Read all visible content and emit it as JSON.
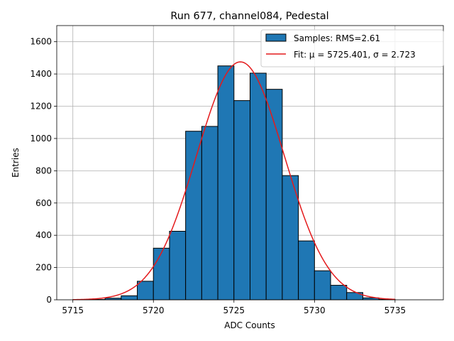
{
  "chart_data": {
    "type": "bar",
    "title": "Run 677, channel084, Pedestal",
    "xlabel": "ADC Counts",
    "ylabel": "Entries",
    "xlim": [
      5714,
      5738
    ],
    "ylim": [
      0,
      1700
    ],
    "xticks": [
      5715,
      5720,
      5725,
      5730,
      5735
    ],
    "yticks": [
      0,
      200,
      400,
      600,
      800,
      1000,
      1200,
      1400,
      1600
    ],
    "grid": true,
    "legend": {
      "placement": "top-right",
      "entries": [
        {
          "label": "Samples: RMS=2.61",
          "kind": "patch"
        },
        {
          "label": "Fit: μ = 5725.401, σ = 2.723",
          "kind": "line"
        }
      ]
    },
    "histogram": {
      "name": "Samples",
      "bin_width": 1,
      "bin_edges_start": 5715,
      "counts": [
        1,
        2,
        10,
        25,
        115,
        320,
        425,
        1045,
        1075,
        1450,
        1235,
        1405,
        1305,
        770,
        365,
        180,
        90,
        45,
        12,
        3,
        0,
        0
      ]
    },
    "fit": {
      "name": "Fit",
      "type": "gaussian",
      "mu": 5725.401,
      "sigma": 2.723,
      "amplitude": 1475,
      "x_range": [
        5715,
        5735
      ]
    },
    "colors": {
      "bar_fill": "#1f77b4",
      "bar_edge": "#000000",
      "fit_line": "#e41a1c",
      "grid": "#b0b0b0"
    }
  }
}
